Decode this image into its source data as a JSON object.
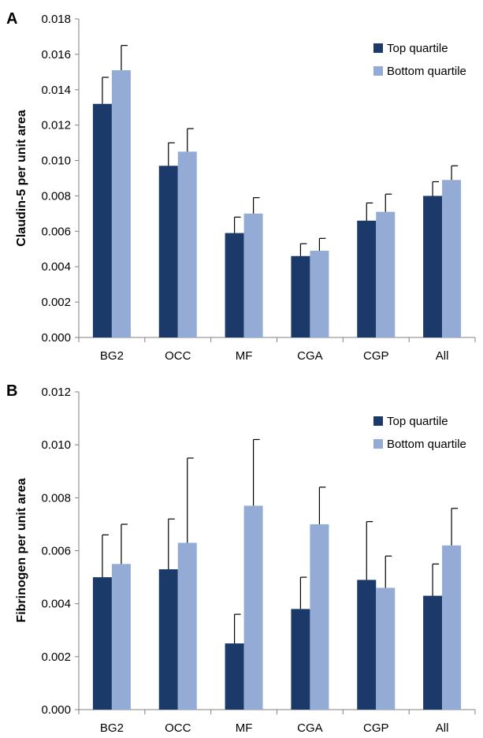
{
  "colors": {
    "top_quartile": "#1b3a6a",
    "bottom_quartile": "#94abd6",
    "axis": "#808080",
    "error_bar": "#000000"
  },
  "chart_data": [
    {
      "panel": "A",
      "type": "bar",
      "ylabel": "Claudin-5 per unit area",
      "ylim": [
        0,
        0.018
      ],
      "yticks": [
        "0.000",
        "0.002",
        "0.004",
        "0.006",
        "0.008",
        "0.010",
        "0.012",
        "0.014",
        "0.016",
        "0.018"
      ],
      "categories": [
        "BG2",
        "OCC",
        "MF",
        "CGA",
        "CGP",
        "All"
      ],
      "legend_position": "top-right",
      "grid": false,
      "series": [
        {
          "name": "Top quartile",
          "values": [
            0.0132,
            0.0097,
            0.0059,
            0.0046,
            0.0066,
            0.008
          ],
          "errors": [
            0.0015,
            0.0013,
            0.0009,
            0.0007,
            0.001,
            0.0008
          ]
        },
        {
          "name": "Bottom quartile",
          "values": [
            0.0151,
            0.0105,
            0.007,
            0.0049,
            0.0071,
            0.0089
          ],
          "errors": [
            0.0014,
            0.0013,
            0.0009,
            0.0007,
            0.001,
            0.0008
          ]
        }
      ]
    },
    {
      "panel": "B",
      "type": "bar",
      "ylabel": "Fibrinogen per unit area",
      "ylim": [
        0,
        0.012
      ],
      "yticks": [
        "0.000",
        "0.002",
        "0.004",
        "0.006",
        "0.008",
        "0.010",
        "0.012"
      ],
      "categories": [
        "BG2",
        "OCC",
        "MF",
        "CGA",
        "CGP",
        "All"
      ],
      "legend_position": "top-right",
      "grid": false,
      "series": [
        {
          "name": "Top quartile",
          "values": [
            0.005,
            0.0053,
            0.0025,
            0.0038,
            0.0049,
            0.0043
          ],
          "errors": [
            0.0016,
            0.0019,
            0.0011,
            0.0012,
            0.0022,
            0.0012
          ]
        },
        {
          "name": "Bottom quartile",
          "values": [
            0.0055,
            0.0063,
            0.0077,
            0.007,
            0.0046,
            0.0062
          ],
          "errors": [
            0.0015,
            0.0032,
            0.0025,
            0.0014,
            0.0012,
            0.0014
          ]
        }
      ]
    }
  ]
}
